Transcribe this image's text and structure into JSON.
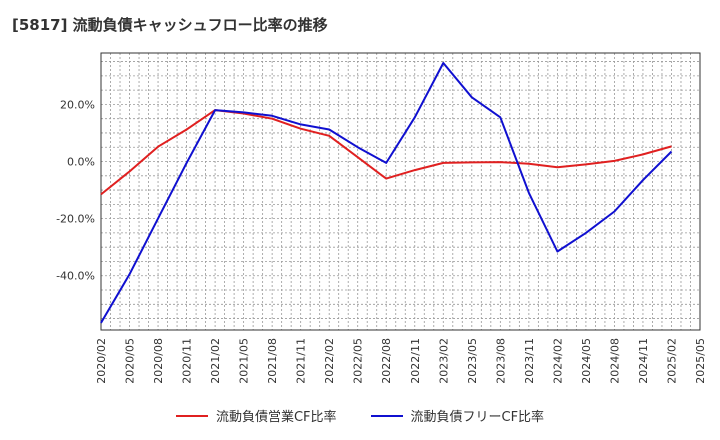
{
  "chart_data": {
    "type": "line",
    "title": "[5817]  流動負債キャッシュフロー比率の推移",
    "x": [
      "2020/02",
      "2020/05",
      "2020/08",
      "2020/11",
      "2021/02",
      "2021/05",
      "2021/08",
      "2021/11",
      "2022/02",
      "2022/05",
      "2022/08",
      "2022/11",
      "2023/02",
      "2023/05",
      "2023/08",
      "2023/11",
      "2024/02",
      "2024/05",
      "2024/08",
      "2024/11",
      "2025/02",
      "2025/05"
    ],
    "y_ticks": [
      "20.0%",
      "0.0%",
      "-20.0%",
      "-40.0%"
    ],
    "y_tick_values": [
      20,
      0,
      -20,
      -40
    ],
    "ylim": [
      -59,
      38
    ],
    "grid": true,
    "legend_position": "bottom",
    "series": [
      {
        "name": "流動負債営業CF比率",
        "color": "#e02020",
        "values": [
          -11.5,
          -3.5,
          5.2,
          11.2,
          18.0,
          16.8,
          15.0,
          11.5,
          9.0,
          1.5,
          -6.0,
          -3.0,
          -0.5,
          -0.3,
          -0.2,
          -0.8,
          -2.0,
          -1.0,
          0.2,
          2.5,
          5.3,
          null
        ]
      },
      {
        "name": "流動負債フリーCF比率",
        "color": "#1010d0",
        "values": [
          -56.5,
          -39.5,
          -20.0,
          -0.5,
          18.0,
          17.2,
          16.0,
          13.0,
          11.2,
          5.0,
          -0.5,
          15.5,
          34.5,
          22.5,
          15.5,
          -11.0,
          -31.5,
          -25.0,
          -17.5,
          -6.5,
          3.5,
          null
        ]
      }
    ]
  }
}
